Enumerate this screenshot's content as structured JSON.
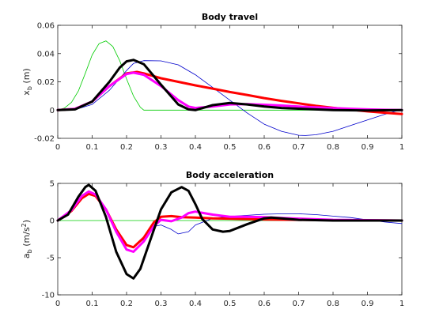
{
  "chart_data": [
    {
      "type": "line",
      "title": "Body travel",
      "ylabel": {
        "main": "x",
        "sub": "b",
        "unit": " (m)"
      },
      "xlim": [
        0,
        1
      ],
      "ylim": [
        -0.02,
        0.06
      ],
      "xticks": [
        0,
        0.1,
        0.2,
        0.3,
        0.4,
        0.5,
        0.6,
        0.7,
        0.8,
        0.9,
        1
      ],
      "xtick_labels": [
        "0",
        "0.1",
        "0.2",
        "0.3",
        "0.4",
        "0.5",
        "0.6",
        "0.7",
        "0.8",
        "0.9",
        "1"
      ],
      "yticks": [
        -0.02,
        0,
        0.02,
        0.04,
        0.06
      ],
      "ytick_labels": [
        "-0.02",
        "0",
        "0.02",
        "0.04",
        "0.06"
      ],
      "grid": false,
      "series": [
        {
          "color": "#00cc00",
          "style": "thin",
          "x": [
            0,
            0.02,
            0.04,
            0.06,
            0.08,
            0.1,
            0.12,
            0.14,
            0.16,
            0.18,
            0.2,
            0.22,
            0.24,
            0.25,
            0.3,
            0.4,
            0.5,
            0.6,
            0.7,
            0.8,
            0.9,
            1.0
          ],
          "y": [
            0,
            0.0015,
            0.0055,
            0.0135,
            0.026,
            0.039,
            0.047,
            0.049,
            0.045,
            0.035,
            0.022,
            0.01,
            0.002,
            0,
            0,
            0,
            0,
            0,
            0,
            0,
            0,
            0
          ]
        },
        {
          "color": "#0000cc",
          "style": "thin",
          "x": [
            0,
            0.05,
            0.1,
            0.15,
            0.2,
            0.22,
            0.25,
            0.3,
            0.35,
            0.4,
            0.45,
            0.5,
            0.55,
            0.6,
            0.65,
            0.7,
            0.72,
            0.75,
            0.8,
            0.85,
            0.9,
            0.95,
            1.0
          ],
          "y": [
            0,
            0.0003,
            0.004,
            0.014,
            0.028,
            0.033,
            0.035,
            0.0348,
            0.032,
            0.025,
            0.016,
            0.007,
            -0.002,
            -0.01,
            -0.015,
            -0.0178,
            -0.018,
            -0.0175,
            -0.015,
            -0.011,
            -0.007,
            -0.003,
            0.0005
          ]
        },
        {
          "color": "#ff0000",
          "style": "thick",
          "x": [
            0,
            0.05,
            0.1,
            0.15,
            0.2,
            0.23,
            0.25,
            0.3,
            0.35,
            0.4,
            0.45,
            0.5,
            0.55,
            0.6,
            0.65,
            0.7,
            0.75,
            0.8,
            0.85,
            0.9,
            0.95,
            1.0
          ],
          "y": [
            0,
            0.0008,
            0.006,
            0.017,
            0.026,
            0.027,
            0.026,
            0.0225,
            0.02,
            0.0175,
            0.0152,
            0.0128,
            0.0107,
            0.0085,
            0.0065,
            0.0048,
            0.003,
            0.0016,
            0.0003,
            -0.0009,
            -0.0019,
            -0.0028
          ]
        },
        {
          "color": "#ff00ff",
          "style": "thick",
          "x": [
            0,
            0.05,
            0.1,
            0.15,
            0.2,
            0.22,
            0.25,
            0.3,
            0.35,
            0.38,
            0.4,
            0.45,
            0.5,
            0.55,
            0.6,
            0.65,
            0.7,
            0.75,
            0.8,
            0.85,
            0.9,
            0.95,
            1.0
          ],
          "y": [
            0,
            0.0008,
            0.006,
            0.017,
            0.0255,
            0.0265,
            0.025,
            0.017,
            0.007,
            0.0025,
            0.0015,
            0.0025,
            0.004,
            0.0042,
            0.0038,
            0.0032,
            0.0025,
            0.002,
            0.0014,
            0.0009,
            0.0005,
            0.0002,
            0
          ]
        },
        {
          "color": "#000000",
          "style": "thick",
          "x": [
            0,
            0.05,
            0.1,
            0.15,
            0.18,
            0.2,
            0.22,
            0.25,
            0.3,
            0.35,
            0.38,
            0.4,
            0.45,
            0.5,
            0.55,
            0.6,
            0.65,
            0.7,
            0.8,
            0.9,
            1.0
          ],
          "y": [
            0,
            0.0005,
            0.006,
            0.02,
            0.03,
            0.0345,
            0.0355,
            0.0325,
            0.018,
            0.004,
            0.0005,
            0,
            0.0035,
            0.005,
            0.004,
            0.0025,
            0.0015,
            0.001,
            0,
            -0.0003,
            0
          ]
        }
      ]
    },
    {
      "type": "line",
      "title": "Body acceleration",
      "ylabel": {
        "main": "a",
        "sub": "b",
        "unit": " (m/s",
        "sup": "2",
        "unit_end": ")"
      },
      "xlim": [
        0,
        1
      ],
      "ylim": [
        -10,
        5
      ],
      "xticks": [
        0,
        0.1,
        0.2,
        0.3,
        0.4,
        0.5,
        0.6,
        0.7,
        0.8,
        0.9,
        1
      ],
      "xtick_labels": [
        "0",
        "0.1",
        "0.2",
        "0.3",
        "0.4",
        "0.5",
        "0.6",
        "0.7",
        "0.8",
        "0.9",
        "1"
      ],
      "yticks": [
        -10,
        -5,
        0,
        5
      ],
      "ytick_labels": [
        "-10",
        "-5",
        "0",
        "5"
      ],
      "grid": false,
      "series": [
        {
          "color": "#00cc00",
          "style": "thin",
          "x": [
            0,
            1
          ],
          "y": [
            0,
            0
          ]
        },
        {
          "color": "#0000cc",
          "style": "thin",
          "x": [
            0,
            0.04,
            0.07,
            0.09,
            0.11,
            0.14,
            0.17,
            0.2,
            0.22,
            0.25,
            0.28,
            0.3,
            0.33,
            0.35,
            0.38,
            0.4,
            0.45,
            0.5,
            0.55,
            0.6,
            0.65,
            0.7,
            0.75,
            0.8,
            0.85,
            0.9,
            0.95,
            1.0
          ],
          "y": [
            0,
            1.5,
            3.2,
            3.6,
            3.3,
            1.5,
            -1.2,
            -3.2,
            -3.6,
            -2.5,
            -0.8,
            -0.6,
            -1.2,
            -1.8,
            -1.5,
            -0.6,
            0.3,
            0.55,
            0.7,
            0.85,
            0.9,
            0.9,
            0.8,
            0.6,
            0.4,
            0.1,
            -0.2,
            -0.4
          ]
        },
        {
          "color": "#ff0000",
          "style": "thick",
          "x": [
            0,
            0.04,
            0.07,
            0.09,
            0.11,
            0.14,
            0.17,
            0.2,
            0.22,
            0.25,
            0.28,
            0.3,
            0.33,
            0.36,
            0.4,
            0.45,
            0.5,
            0.55,
            0.6,
            0.7,
            0.8,
            0.9,
            1.0
          ],
          "y": [
            0,
            1.3,
            3.0,
            3.6,
            3.3,
            1.5,
            -1.2,
            -3.3,
            -3.6,
            -2.3,
            -0.2,
            0.5,
            0.6,
            0.45,
            0.4,
            0.3,
            0.25,
            0.2,
            0.15,
            0.1,
            0.05,
            0.03,
            0
          ]
        },
        {
          "color": "#ff00ff",
          "style": "thick",
          "x": [
            0,
            0.04,
            0.07,
            0.09,
            0.11,
            0.14,
            0.17,
            0.2,
            0.22,
            0.25,
            0.28,
            0.3,
            0.33,
            0.36,
            0.38,
            0.4,
            0.45,
            0.5,
            0.55,
            0.6,
            0.65,
            0.7,
            0.8,
            0.9,
            1.0
          ],
          "y": [
            0,
            1.4,
            3.3,
            3.9,
            3.5,
            1.5,
            -1.5,
            -3.9,
            -4.2,
            -2.8,
            -0.7,
            0.1,
            -0.1,
            0.4,
            1.0,
            1.2,
            0.8,
            0.5,
            0.5,
            0.45,
            0.35,
            0.25,
            0.1,
            0.05,
            0
          ]
        },
        {
          "color": "#000000",
          "style": "thick",
          "x": [
            0,
            0.03,
            0.06,
            0.08,
            0.09,
            0.11,
            0.14,
            0.17,
            0.2,
            0.22,
            0.24,
            0.27,
            0.3,
            0.33,
            0.36,
            0.38,
            0.4,
            0.42,
            0.45,
            0.48,
            0.5,
            0.55,
            0.6,
            0.62,
            0.65,
            0.7,
            0.8,
            0.9,
            1.0
          ],
          "y": [
            0,
            0.8,
            3.2,
            4.5,
            4.8,
            4.0,
            0.5,
            -4.2,
            -7.2,
            -7.8,
            -6.5,
            -2.5,
            1.5,
            3.8,
            4.5,
            4.0,
            2.2,
            0.2,
            -1.2,
            -1.5,
            -1.4,
            -0.5,
            0.3,
            0.4,
            0.3,
            0.1,
            0,
            0,
            0
          ]
        }
      ]
    }
  ]
}
